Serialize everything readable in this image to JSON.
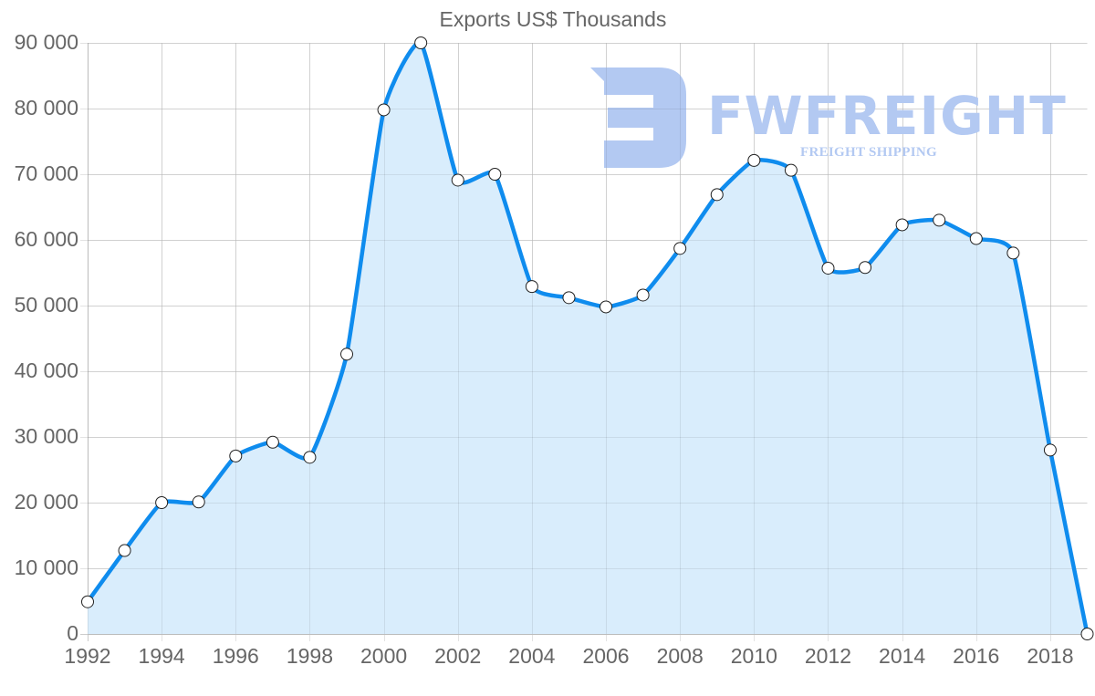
{
  "chart_data": {
    "type": "area",
    "title": "Exports US$ Thousands",
    "xlabel": "",
    "ylabel": "",
    "x": [
      1992,
      1993,
      1994,
      1995,
      1996,
      1997,
      1998,
      1999,
      2000,
      2001,
      2002,
      2003,
      2004,
      2005,
      2006,
      2007,
      2008,
      2009,
      2010,
      2011,
      2012,
      2013,
      2014,
      2015,
      2016,
      2017,
      2018,
      2019
    ],
    "series": [
      {
        "name": "Exports US$ Thousands",
        "values": [
          4900,
          12700,
          20000,
          20100,
          27100,
          29200,
          26900,
          42600,
          79800,
          90000,
          69100,
          70000,
          52900,
          51200,
          49800,
          51600,
          58700,
          66900,
          72100,
          70600,
          55700,
          55800,
          62300,
          63000,
          60200,
          58000,
          28000,
          0
        ]
      }
    ],
    "ylim": [
      0,
      90000
    ],
    "yticks": [
      0,
      10000,
      20000,
      30000,
      40000,
      50000,
      60000,
      70000,
      80000,
      90000
    ],
    "ytick_labels": [
      "0",
      "10 000",
      "20 000",
      "30 000",
      "40 000",
      "50 000",
      "60 000",
      "70 000",
      "80 000",
      "90 000"
    ],
    "xticks": [
      1992,
      1994,
      1996,
      1998,
      2000,
      2002,
      2004,
      2006,
      2008,
      2010,
      2012,
      2014,
      2016,
      2018
    ],
    "grid": true,
    "legend": "none",
    "line_color": "#0f8cee",
    "fill_color": "#d9edfc",
    "marker_fill": "#ffffff",
    "marker_stroke": "#222222"
  },
  "watermark": {
    "brand": "FWFREIGHT",
    "tagline": "FREIGHT SHIPPING",
    "color": "#b3c9f2"
  }
}
